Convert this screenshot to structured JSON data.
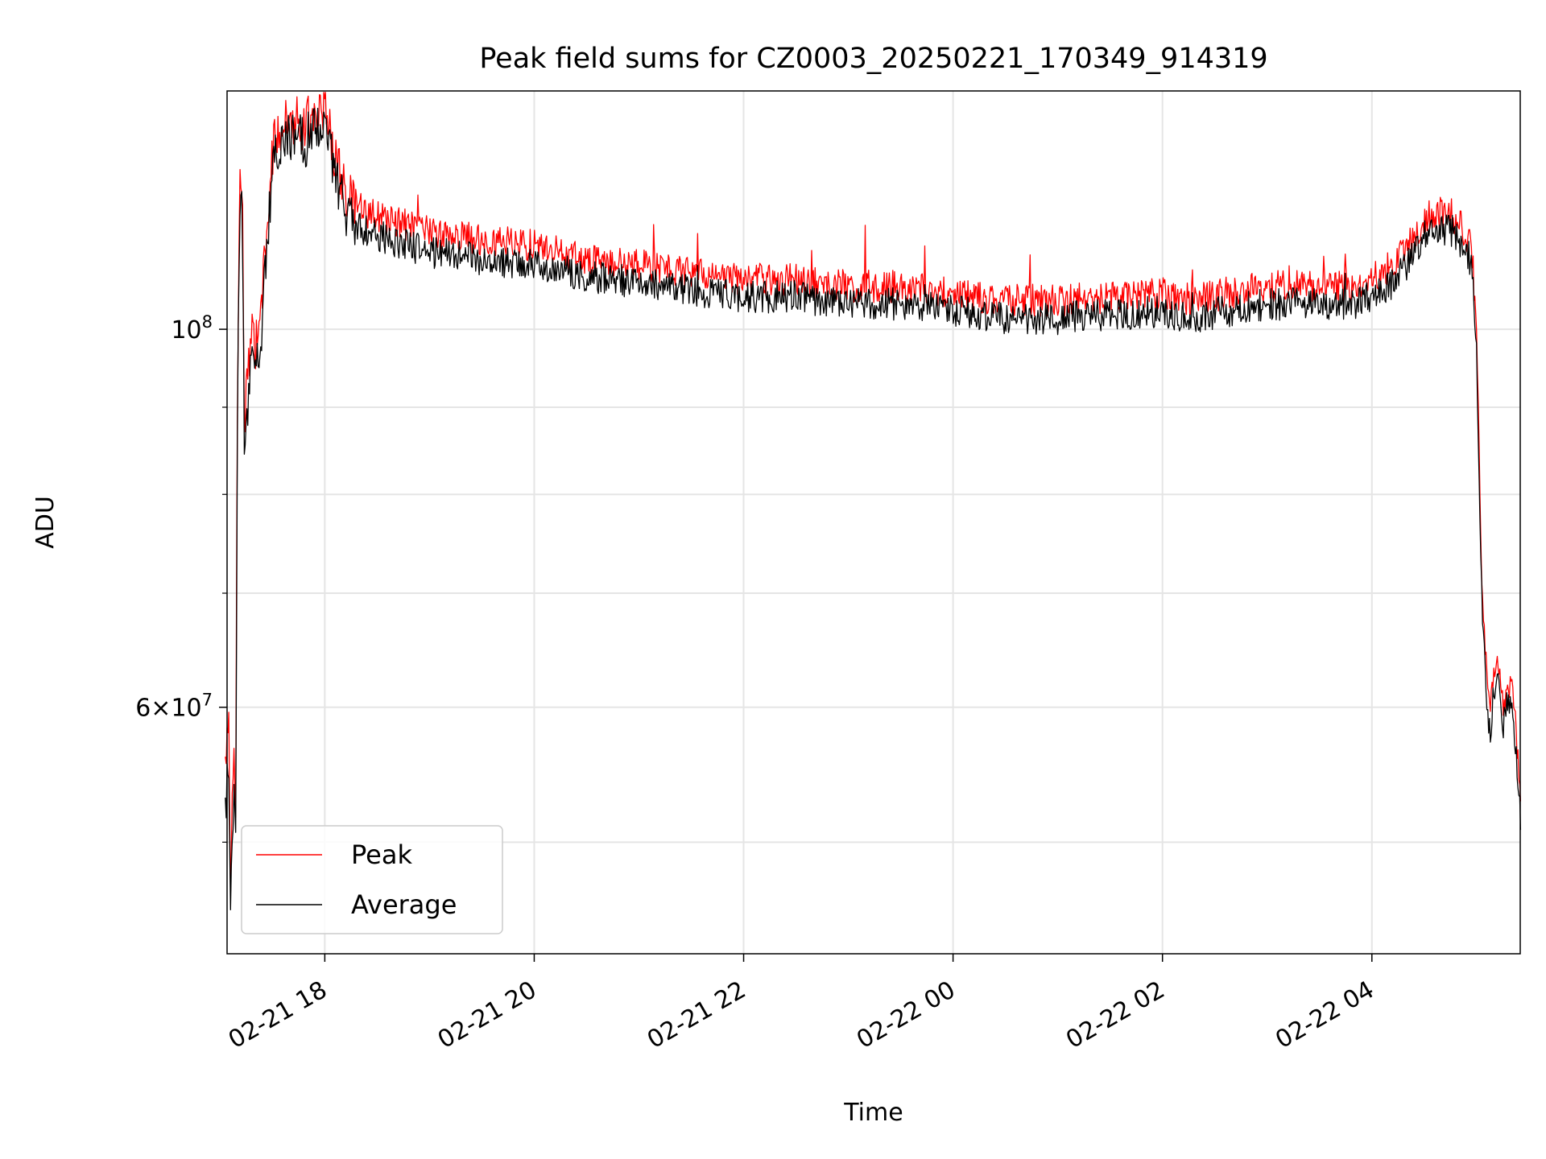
{
  "chart_data": {
    "type": "line",
    "title": "Peak field sums for CZ0003_20250221_170349_914319",
    "xlabel": "Time",
    "ylabel": "ADU",
    "x_unit": "hours after 02-21 17:00 (data domain)",
    "xlim": [
      "02-21 17:04",
      "02-22 05:25"
    ],
    "ylim": [
      43000000,
      138000000
    ],
    "y_scale": "log",
    "grid": true,
    "x_ticks": [
      {
        "value": 1,
        "label": "02-21 18"
      },
      {
        "value": 3,
        "label": "02-21 20"
      },
      {
        "value": 5,
        "label": "02-21 22"
      },
      {
        "value": 7,
        "label": "02-22 00"
      },
      {
        "value": 9,
        "label": "02-22 02"
      },
      {
        "value": 11,
        "label": "02-22 04"
      }
    ],
    "y_ticks_major": [
      {
        "value": 100000000,
        "base": "10",
        "exp": "8"
      },
      {
        "value": 60000000,
        "mant": "6",
        "base": "10",
        "exp": "7"
      }
    ],
    "y_ticks_minor": [
      50000000,
      70000000,
      80000000,
      90000000
    ],
    "legend": {
      "position": "lower-left",
      "entries": [
        "Peak",
        "Average"
      ]
    },
    "series": [
      {
        "name": "Peak",
        "color": "#ff0000",
        "x": [
          0.05,
          0.08,
          0.1,
          0.13,
          0.15,
          0.17,
          0.19,
          0.21,
          0.23,
          0.26,
          0.3,
          0.35,
          0.4,
          0.45,
          0.5,
          0.55,
          0.6,
          0.65,
          0.7,
          0.75,
          0.8,
          0.85,
          0.9,
          0.95,
          1.0,
          1.03,
          1.06,
          1.1,
          1.15,
          1.2,
          1.3,
          1.4,
          1.6,
          1.8,
          2.0,
          2.5,
          3.0,
          3.5,
          4.0,
          4.5,
          5.0,
          5.5,
          6.0,
          6.5,
          7.0,
          7.5,
          8.0,
          8.5,
          9.0,
          9.3,
          9.6,
          10.0,
          10.5,
          10.8,
          11.0,
          11.2,
          11.4,
          11.5,
          11.6,
          11.75,
          11.85,
          11.95,
          12.0,
          12.03,
          12.06,
          12.1,
          12.13,
          12.16,
          12.2,
          12.25,
          12.3,
          12.35,
          12.4,
          12.42
        ],
        "y": [
          55000000,
          60000000,
          47000000,
          56000000,
          52000000,
          100000000,
          122000000,
          124000000,
          89000000,
          92000000,
          99000000,
          98000000,
          104000000,
          114000000,
          127000000,
          131000000,
          132000000,
          132500000,
          133000000,
          134000000,
          131000000,
          133000000,
          135000000,
          134000000,
          135000000,
          134000000,
          130000000,
          125000000,
          124000000,
          120000000,
          118000000,
          117000000,
          116000000,
          115000000,
          114000000,
          113000000,
          112000000,
          110000000,
          109000000,
          108000000,
          107000000,
          107000000,
          106000000,
          106000000,
          105000000,
          104000000,
          104000000,
          104500000,
          105000000,
          104000000,
          105000000,
          106000000,
          106000000,
          106000000,
          107000000,
          109000000,
          113000000,
          116000000,
          117000000,
          117000000,
          115000000,
          112000000,
          100000000,
          80000000,
          68000000,
          62000000,
          59000000,
          63000000,
          64000000,
          60000000,
          62000000,
          61000000,
          55000000,
          53000000
        ]
      },
      {
        "name": "Average",
        "color": "#000000",
        "x": [
          0.05,
          0.08,
          0.1,
          0.13,
          0.15,
          0.17,
          0.19,
          0.21,
          0.23,
          0.26,
          0.3,
          0.35,
          0.4,
          0.45,
          0.5,
          0.55,
          0.6,
          0.65,
          0.7,
          0.75,
          0.8,
          0.85,
          0.9,
          0.95,
          1.0,
          1.03,
          1.06,
          1.1,
          1.15,
          1.2,
          1.3,
          1.4,
          1.6,
          1.8,
          2.0,
          2.5,
          3.0,
          3.5,
          4.0,
          4.5,
          5.0,
          5.5,
          6.0,
          6.5,
          7.0,
          7.5,
          8.0,
          8.5,
          9.0,
          9.3,
          9.6,
          10.0,
          10.5,
          10.8,
          11.0,
          11.2,
          11.4,
          11.5,
          11.6,
          11.75,
          11.85,
          11.95,
          12.0,
          12.03,
          12.06,
          12.1,
          12.13,
          12.16,
          12.2,
          12.25,
          12.3,
          12.35,
          12.4,
          12.42
        ],
        "y": [
          52000000,
          56000000,
          45000000,
          53000000,
          50000000,
          97000000,
          119000000,
          120000000,
          86000000,
          89000000,
          96000000,
          95000000,
          101000000,
          111000000,
          124000000,
          128000000,
          129000000,
          129500000,
          130000000,
          131000000,
          128000000,
          130000000,
          132000000,
          131000000,
          132000000,
          131000000,
          127000000,
          122000000,
          121000000,
          117000000,
          115000000,
          114000000,
          113000000,
          112000000,
          111000000,
          110000000,
          109000000,
          107500000,
          106500000,
          105500000,
          104500000,
          104500000,
          103500000,
          103500000,
          102500000,
          101500000,
          101500000,
          102000000,
          102500000,
          101500000,
          102500000,
          103500000,
          103500000,
          103500000,
          104500000,
          106500000,
          110500000,
          113500000,
          114500000,
          114500000,
          112500000,
          109500000,
          97500000,
          78000000,
          66500000,
          60500000,
          57500000,
          61500000,
          62500000,
          58500000,
          60500000,
          59500000,
          53500000,
          51500000
        ]
      }
    ]
  }
}
